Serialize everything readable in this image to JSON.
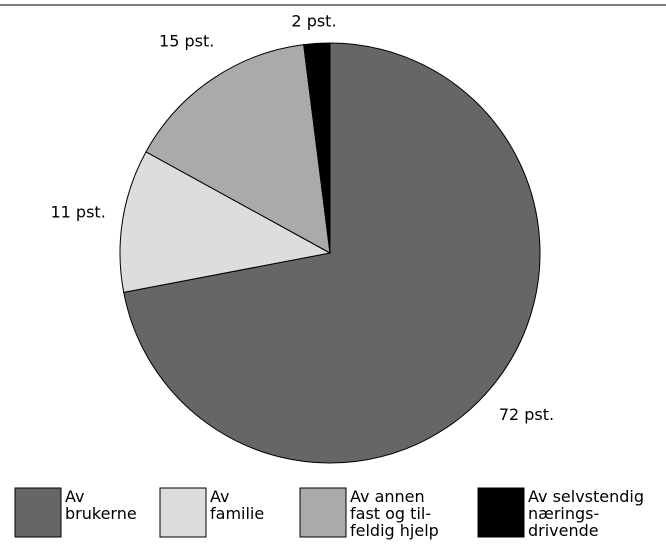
{
  "chart_data": {
    "type": "pie",
    "categories": [
      "Av\nbrukerne",
      "Av\nfamilie",
      "Av annen\nfast og til-\nfeldig hjelp",
      "Av selvstendig\nnærings-\ndrivende"
    ],
    "values": [
      72,
      11,
      15,
      2
    ],
    "value_labels": [
      "72 pst.",
      "11 pst.",
      "15 pst.",
      "2 pst."
    ],
    "colors": [
      "#666666",
      "#dddddd",
      "#aaaaaa",
      "#000000"
    ]
  }
}
